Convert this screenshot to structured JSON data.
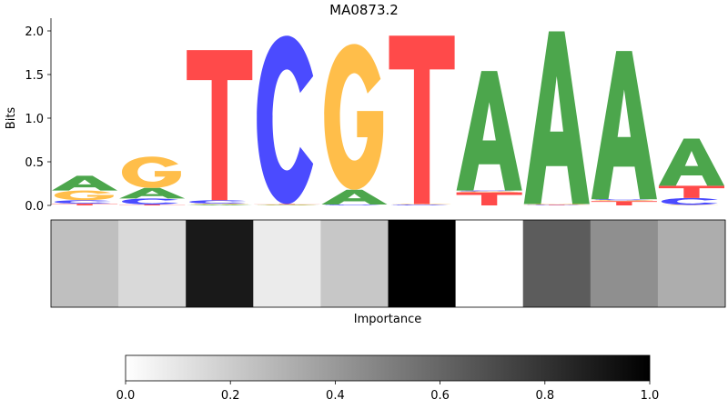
{
  "chart_data": {
    "type": "sequence_logo",
    "title": "MA0873.2",
    "ylabel": "Bits",
    "xlabel": "Importance",
    "ylim": [
      0,
      2.0
    ],
    "yticks": [
      "0.0",
      "0.5",
      "1.0",
      "1.5",
      "2.0"
    ],
    "colors": {
      "A": "#4CA64C",
      "C": "#4B4BFF",
      "G": "#FFBE4A",
      "T": "#FF4A4A"
    },
    "positions": [
      [
        [
          "T",
          0.02
        ],
        [
          "C",
          0.04
        ],
        [
          "G",
          0.11
        ],
        [
          "A",
          0.17
        ]
      ],
      [
        [
          "T",
          0.01
        ],
        [
          "C",
          0.07
        ],
        [
          "A",
          0.12
        ],
        [
          "G",
          0.36
        ]
      ],
      [
        [
          "A",
          0.01
        ],
        [
          "G",
          0.01
        ],
        [
          "C",
          0.04
        ],
        [
          "T",
          1.72
        ]
      ],
      [
        [
          "A",
          0.005
        ],
        [
          "G",
          0.005
        ],
        [
          "T",
          0.005
        ],
        [
          "C",
          1.93
        ]
      ],
      [
        [
          "C",
          0.01
        ],
        [
          "A",
          0.17
        ],
        [
          "G",
          1.67
        ]
      ],
      [
        [
          "C",
          0.01
        ],
        [
          "G",
          0.005
        ],
        [
          "T",
          1.93
        ]
      ],
      [
        [
          "T",
          0.15
        ],
        [
          "G",
          0.01
        ],
        [
          "C",
          0.01
        ],
        [
          "A",
          1.37
        ]
      ],
      [
        [
          "T",
          0.005
        ],
        [
          "C",
          0.005
        ],
        [
          "G",
          0.005
        ],
        [
          "A",
          1.98
        ]
      ],
      [
        [
          "T",
          0.05
        ],
        [
          "G",
          0.01
        ],
        [
          "C",
          0.01
        ],
        [
          "A",
          1.7
        ]
      ],
      [
        [
          "G",
          0.005
        ],
        [
          "C",
          0.08
        ],
        [
          "T",
          0.14
        ],
        [
          "A",
          0.54
        ]
      ]
    ],
    "importance": [
      0.25,
      0.15,
      0.9,
      0.08,
      0.22,
      1.0,
      0.0,
      0.64,
      0.44,
      0.32
    ],
    "colorbar": {
      "min": 0.0,
      "max": 1.0,
      "ticks": [
        "0.0",
        "0.2",
        "0.4",
        "0.6",
        "0.8",
        "1.0"
      ]
    }
  }
}
